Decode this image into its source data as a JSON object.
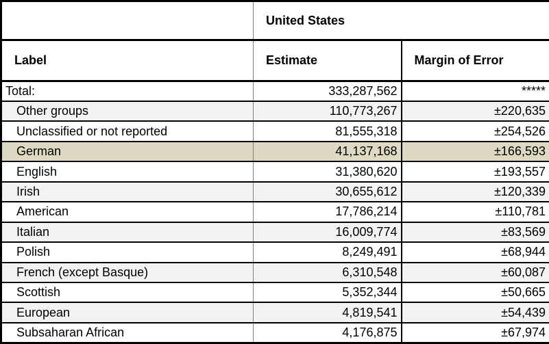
{
  "table": {
    "geography_header": "United States",
    "columns": {
      "label": "Label",
      "estimate": "Estimate",
      "moe": "Margin of Error"
    },
    "rows": [
      {
        "label": "Total:",
        "estimate": "333,287,562",
        "moe": "*****",
        "indent": false,
        "highlighted": false
      },
      {
        "label": "Other groups",
        "estimate": "110,773,267",
        "moe": "±220,635",
        "indent": true,
        "highlighted": false
      },
      {
        "label": "Unclassified or not reported",
        "estimate": "81,555,318",
        "moe": "±254,526",
        "indent": true,
        "highlighted": false
      },
      {
        "label": "German",
        "estimate": "41,137,168",
        "moe": "±166,593",
        "indent": true,
        "highlighted": true
      },
      {
        "label": "English",
        "estimate": "31,380,620",
        "moe": "±193,557",
        "indent": true,
        "highlighted": false
      },
      {
        "label": "Irish",
        "estimate": "30,655,612",
        "moe": "±120,339",
        "indent": true,
        "highlighted": false
      },
      {
        "label": "American",
        "estimate": "17,786,214",
        "moe": "±110,781",
        "indent": true,
        "highlighted": false
      },
      {
        "label": "Italian",
        "estimate": "16,009,774",
        "moe": "±83,569",
        "indent": true,
        "highlighted": false
      },
      {
        "label": "Polish",
        "estimate": "8,249,491",
        "moe": "±68,944",
        "indent": true,
        "highlighted": false
      },
      {
        "label": "French (except Basque)",
        "estimate": "6,310,548",
        "moe": "±60,087",
        "indent": true,
        "highlighted": false
      },
      {
        "label": "Scottish",
        "estimate": "5,352,344",
        "moe": "±50,665",
        "indent": true,
        "highlighted": false
      },
      {
        "label": "European",
        "estimate": "4,819,541",
        "moe": "±54,439",
        "indent": true,
        "highlighted": false
      },
      {
        "label": "Subsaharan African",
        "estimate": "4,176,875",
        "moe": "±67,974",
        "indent": true,
        "highlighted": false
      }
    ]
  },
  "colors": {
    "highlight_row": "#ddd9c3",
    "stripe_row": "#f2f2f2",
    "grid_dark": "#000000",
    "grid_gray": "#808080"
  }
}
